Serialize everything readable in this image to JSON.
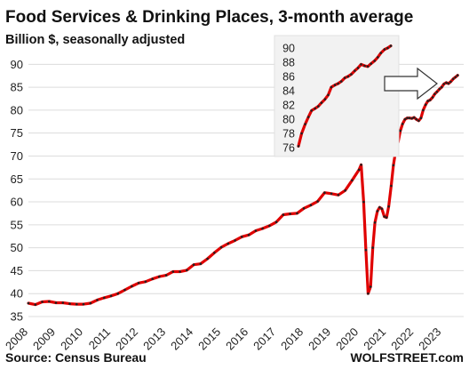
{
  "chart_data": {
    "type": "line",
    "title": "Food Services & Drinking Places, 3-month average",
    "subtitle": "Billion $, seasonally adjusted",
    "source": "Source: Census Bureau",
    "brand": "WOLFSTREET.com",
    "ylim": [
      35,
      92
    ],
    "y_ticks": [
      35,
      40,
      45,
      50,
      55,
      60,
      65,
      70,
      75,
      80,
      85,
      90
    ],
    "xlim": [
      2008,
      2023.8
    ],
    "x_ticks": [
      "2008",
      "2009",
      "2010",
      "2011",
      "2012",
      "2013",
      "2014",
      "2015",
      "2016",
      "2017",
      "2018",
      "2019",
      "2020",
      "2021",
      "2022",
      "2023"
    ],
    "colors": {
      "line": "#e00000",
      "markers": "#222222",
      "grid": "#dcdcdc",
      "inset_bg": "#f2f2f2",
      "arrow_fill": "#ffffff",
      "arrow_stroke": "#333333"
    },
    "series": [
      {
        "x": [
          2008.0,
          2008.25,
          2008.5,
          2008.75,
          2009.0,
          2009.25,
          2009.5,
          2009.75,
          2010.0,
          2010.25,
          2010.5,
          2010.75,
          2011.0,
          2011.25,
          2011.5,
          2011.75,
          2012.0,
          2012.25,
          2012.5,
          2012.75,
          2013.0,
          2013.25,
          2013.5,
          2013.75,
          2014.0,
          2014.25,
          2014.5,
          2014.75,
          2015.0,
          2015.25,
          2015.5,
          2015.75,
          2016.0,
          2016.25,
          2016.5,
          2016.75,
          2017.0,
          2017.25,
          2017.5,
          2017.75,
          2018.0,
          2018.25,
          2018.5,
          2018.75,
          2019.0,
          2019.25,
          2019.5,
          2019.75,
          2020.0,
          2020.08,
          2020.17,
          2020.25,
          2020.33,
          2020.42,
          2020.5,
          2020.58,
          2020.67,
          2020.75,
          2020.83,
          2020.92,
          2021.0,
          2021.08,
          2021.17,
          2021.25,
          2021.33,
          2021.42,
          2021.5,
          2021.58,
          2021.67,
          2021.75,
          2021.83,
          2021.92,
          2022.0,
          2022.08,
          2022.17,
          2022.25,
          2022.33,
          2022.42,
          2022.5,
          2022.58,
          2022.67,
          2022.75,
          2022.83,
          2022.92,
          2023.0,
          2023.08,
          2023.17,
          2023.25,
          2023.33,
          2023.42,
          2023.5,
          2023.58
        ],
        "y": [
          37.9,
          37.6,
          38.2,
          38.3,
          38.0,
          38.0,
          37.8,
          37.7,
          37.7,
          37.9,
          38.6,
          39.1,
          39.5,
          40.0,
          40.8,
          41.6,
          42.3,
          42.6,
          43.2,
          43.7,
          44.0,
          44.8,
          44.8,
          45.1,
          46.3,
          46.5,
          47.6,
          48.9,
          50.1,
          50.9,
          51.6,
          52.4,
          52.8,
          53.7,
          54.2,
          54.8,
          55.6,
          57.2,
          57.4,
          57.5,
          58.6,
          59.3,
          60.1,
          62.0,
          61.8,
          61.5,
          62.5,
          64.7,
          67.0,
          68.1,
          60.0,
          49.5,
          40.0,
          41.5,
          50.0,
          55.5,
          58.0,
          58.8,
          58.5,
          56.8,
          56.6,
          59.0,
          63.5,
          68.0,
          71.0,
          73.0,
          75.5,
          77.0,
          78.0,
          78.3,
          78.3,
          78.2,
          78.4,
          78.0,
          77.7,
          78.3,
          80.0,
          81.2,
          82.0,
          82.2,
          82.8,
          83.5,
          84.0,
          84.6,
          85.0,
          85.7,
          86.0,
          85.8,
          86.2,
          86.8,
          87.2,
          87.6
        ]
      }
    ],
    "inset": {
      "ylim": [
        76,
        91
      ],
      "y_ticks": [
        76,
        78,
        80,
        82,
        84,
        86,
        88,
        90
      ],
      "x": [
        2021.25,
        2021.33,
        2021.42,
        2021.5,
        2021.58,
        2021.67,
        2021.75,
        2021.83,
        2021.92,
        2022.0,
        2022.08,
        2022.17,
        2022.25,
        2022.33,
        2022.42,
        2022.5,
        2022.58,
        2022.67,
        2022.75,
        2022.83,
        2022.92,
        2023.0,
        2023.08,
        2023.17,
        2023.25,
        2023.33,
        2023.42,
        2023.5,
        2023.58
      ],
      "y": [
        76.2,
        78.0,
        79.3,
        80.3,
        81.2,
        81.5,
        81.8,
        82.3,
        82.8,
        83.4,
        84.5,
        84.8,
        85.0,
        85.3,
        85.8,
        86.0,
        86.3,
        86.8,
        87.2,
        87.7,
        87.5,
        87.4,
        87.8,
        88.2,
        88.7,
        89.3,
        89.8,
        90.0,
        90.3
      ]
    }
  }
}
